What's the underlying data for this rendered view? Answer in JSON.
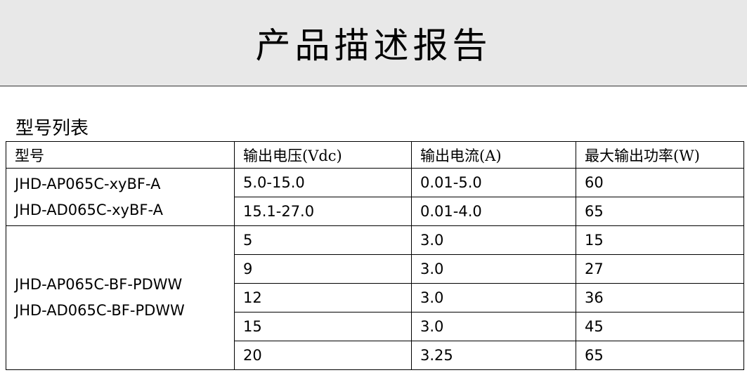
{
  "header": {
    "title": "产品描述报告"
  },
  "section": {
    "title": "型号列表"
  },
  "table": {
    "columns": [
      "型号",
      "输出电压(Vdc)",
      "输出电流(A)",
      "最大输出功率(W)"
    ],
    "groups": [
      {
        "models": [
          "JHD-AP065C-xyBF-A",
          "JHD-AD065C-xyBF-A"
        ],
        "rows": [
          [
            "5.0-15.0",
            "0.01-5.0",
            "60"
          ],
          [
            "15.1-27.0",
            "0.01-4.0",
            "65"
          ]
        ]
      },
      {
        "models": [
          "JHD-AP065C-BF-PDWW",
          "JHD-AD065C-BF-PDWW"
        ],
        "rows": [
          [
            "5",
            "3.0",
            "15"
          ],
          [
            "9",
            "3.0",
            "27"
          ],
          [
            "12",
            "3.0",
            "36"
          ],
          [
            "15",
            "3.0",
            "45"
          ],
          [
            "20",
            "3.25",
            "65"
          ]
        ]
      }
    ]
  }
}
